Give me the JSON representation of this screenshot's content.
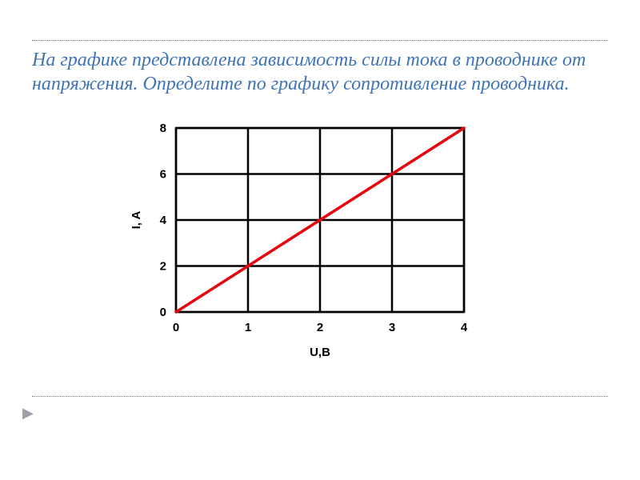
{
  "title": {
    "text": "На графике представлена зависимость силы тока в проводнике от напряжения. Определите по графику сопротивление проводника.",
    "color": "#3e74b5",
    "font_size_pt": 18,
    "font_style": "italic"
  },
  "rules": {
    "color": "#7a7a7a",
    "style": "dotted"
  },
  "chart": {
    "type": "line",
    "background_color": "#ffffff",
    "plot_background": "#ffffff",
    "xlabel": "U,В",
    "ylabel": "I, A",
    "label_fontsize": 15,
    "label_fontweight": "bold",
    "tick_fontsize": 15,
    "tick_fontweight": "bold",
    "xlim": [
      0,
      4
    ],
    "ylim": [
      0,
      8
    ],
    "xticks": [
      0,
      1,
      2,
      3,
      4
    ],
    "yticks": [
      0,
      2,
      4,
      6,
      8
    ],
    "grid": true,
    "grid_color": "#000000",
    "grid_linewidth": 2.5,
    "axis_color": "#000000",
    "axis_linewidth": 2.5,
    "series": [
      {
        "name": "current-vs-voltage",
        "x": [
          0,
          4
        ],
        "y": [
          0,
          8
        ],
        "color": "#e7040f",
        "linewidth": 3.5,
        "marker": "none"
      }
    ]
  }
}
